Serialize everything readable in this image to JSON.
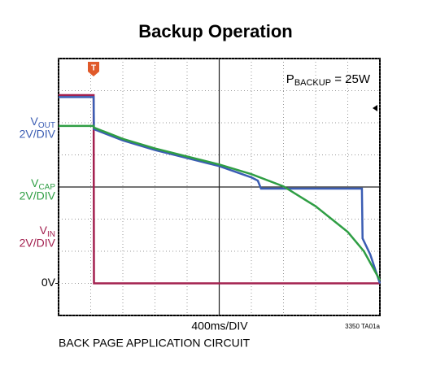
{
  "chart_data": {
    "type": "line",
    "title": "Backup Operation",
    "annotation": {
      "main": "P",
      "sub": "BACKUP",
      "rest": " = 25W"
    },
    "xlabel": "400ms/DIV",
    "figure_id": "3350 TA01a",
    "caption": "BACK PAGE APPLICATION CIRCUIT",
    "trigger_label": "T",
    "zero_label": "0V",
    "zero_level": 1,
    "xlim": [
      0,
      10
    ],
    "ylim": [
      0,
      8
    ],
    "xticks": [
      0,
      1,
      2,
      3,
      4,
      5,
      6,
      7,
      8,
      9,
      10
    ],
    "yticks": [
      0,
      1,
      2,
      3,
      4,
      5,
      6,
      7,
      8
    ],
    "grid": true,
    "series": [
      {
        "name": "V",
        "name_sub": "OUT",
        "scale": "2V/DIV",
        "color": "#3b5db3",
        "x": [
          0,
          1.09,
          1.1,
          2,
          3,
          4,
          5,
          6,
          6.2,
          6.3,
          7,
          8,
          9,
          9.44,
          9.46,
          9.7,
          10
        ],
        "values": [
          6.8,
          6.8,
          5.8,
          5.45,
          5.15,
          4.9,
          4.65,
          4.3,
          4.2,
          3.95,
          3.95,
          3.95,
          3.95,
          3.95,
          2.4,
          1.9,
          1.0
        ]
      },
      {
        "name": "V",
        "name_sub": "CAP",
        "scale": "2V/DIV",
        "color": "#2f9e44",
        "x": [
          0,
          1.09,
          1.1,
          2,
          3,
          4,
          5,
          6,
          7,
          8,
          8.5,
          9,
          9.5,
          10
        ],
        "values": [
          5.9,
          5.9,
          5.85,
          5.5,
          5.2,
          4.95,
          4.7,
          4.4,
          4.02,
          3.4,
          3.0,
          2.6,
          2.0,
          1.1
        ]
      },
      {
        "name": "V",
        "name_sub": "IN",
        "scale": "2V/DIV",
        "color": "#a3204f",
        "x": [
          0,
          1.09,
          1.1,
          10
        ],
        "values": [
          6.86,
          6.86,
          1.0,
          1.0
        ]
      }
    ]
  }
}
